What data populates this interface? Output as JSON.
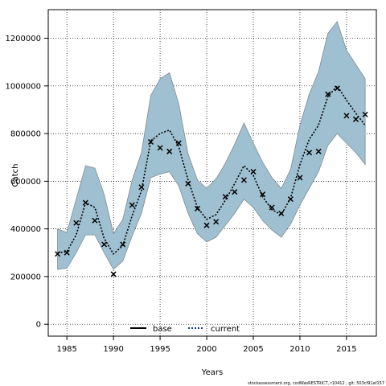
{
  "chart_data": {
    "type": "line",
    "xlabel": "Years",
    "ylabel": "Catch",
    "xlim": [
      1983,
      2018.2
    ],
    "ylim": [
      -50000,
      1320000
    ],
    "x_ticks": [
      1985,
      1990,
      1995,
      2000,
      2005,
      2010,
      2015
    ],
    "y_ticks": [
      0,
      200000,
      400000,
      600000,
      800000,
      1000000,
      1200000
    ],
    "grid": true,
    "legend_position": "bottom-center",
    "x": [
      1984,
      1985,
      1986,
      1987,
      1988,
      1989,
      1990,
      1991,
      1992,
      1993,
      1994,
      1995,
      1996,
      1997,
      1998,
      1999,
      2000,
      2001,
      2002,
      2003,
      2004,
      2005,
      2006,
      2007,
      2008,
      2009,
      2010,
      2011,
      2012,
      2013,
      2014,
      2015,
      2016,
      2017
    ],
    "series": [
      {
        "name": "current",
        "role": "fit",
        "values": [
          300000,
          305000,
          375000,
          510000,
          490000,
          360000,
          295000,
          330000,
          455000,
          560000,
          770000,
          800000,
          815000,
          745000,
          605000,
          490000,
          440000,
          460000,
          520000,
          590000,
          665000,
          625000,
          535000,
          480000,
          460000,
          530000,
          670000,
          775000,
          835000,
          955000,
          1000000,
          940000,
          885000,
          835000
        ]
      },
      {
        "name": "observed",
        "role": "points",
        "values": [
          295000,
          300000,
          425000,
          510000,
          435000,
          335000,
          210000,
          335000,
          500000,
          575000,
          765000,
          740000,
          725000,
          760000,
          590000,
          485000,
          415000,
          430000,
          535000,
          555000,
          605000,
          640000,
          545000,
          490000,
          465000,
          525000,
          615000,
          720000,
          725000,
          965000,
          990000,
          875000,
          860000,
          880000
        ]
      },
      {
        "name": "band_upper",
        "role": "ci_upper",
        "values": [
          400000,
          385000,
          525000,
          665000,
          655000,
          545000,
          380000,
          440000,
          605000,
          720000,
          960000,
          1030000,
          1055000,
          925000,
          715000,
          605000,
          570000,
          610000,
          675000,
          755000,
          845000,
          760000,
          680000,
          615000,
          570000,
          650000,
          835000,
          965000,
          1060000,
          1220000,
          1270000,
          1150000,
          1090000,
          1030000
        ]
      },
      {
        "name": "band_lower",
        "role": "ci_lower",
        "values": [
          230000,
          235000,
          300000,
          375000,
          375000,
          300000,
          230000,
          265000,
          370000,
          465000,
          615000,
          630000,
          640000,
          580000,
          465000,
          380000,
          345000,
          365000,
          415000,
          465000,
          525000,
          490000,
          435000,
          395000,
          365000,
          420000,
          500000,
          570000,
          640000,
          750000,
          800000,
          760000,
          720000,
          670000
        ]
      }
    ],
    "legend": [
      {
        "label": "base",
        "style": "solid",
        "color": "#000000"
      },
      {
        "label": "current",
        "style": "dotted",
        "color": "#1a3a9a"
      }
    ],
    "colors": {
      "band_fill": "#9fc0d1",
      "band_edge": "#7f8a93",
      "fit_line": "#000000",
      "points": "#000000"
    }
  },
  "footer": {
    "text": "stockassessment.org, codWasRESTRICT, r10412 , git: 503cf91af157"
  }
}
